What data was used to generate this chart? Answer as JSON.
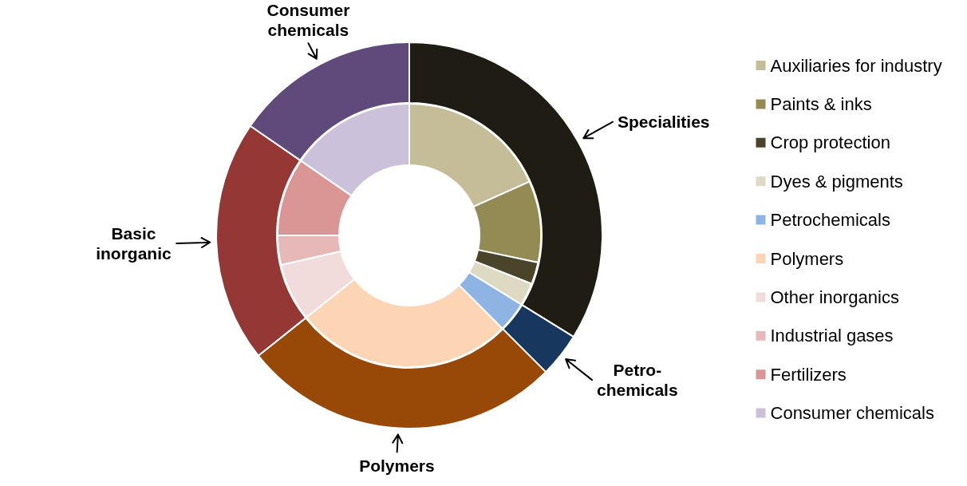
{
  "chart_data": [
    {
      "type": "donut",
      "legend": "right",
      "categories": [
        "Auxiliaries for industry",
        "Paints & inks",
        "Crop protection",
        "Dyes & pigments",
        "Petrochemicals",
        "Polymers",
        "Other inorganics",
        "Industrial gases",
        "Fertilizers",
        "Consumer chemicals"
      ],
      "values": [
        18.3,
        10.0,
        2.7,
        2.8,
        3.7,
        26.8,
        7.1,
        3.6,
        9.6,
        15.4
      ],
      "colors": [
        "#c4bd97",
        "#948a54",
        "#4a452a",
        "#ddd9c3",
        "#8eb4e3",
        "#fcd5b5",
        "#f2dcdb",
        "#e6b9b8",
        "#d99694",
        "#ccc1da"
      ]
    },
    {
      "type": "donut",
      "categories": [
        "Specialities",
        "Petro-chemicals",
        "Polymers",
        "Basic inorganic",
        "Consumer chemicals"
      ],
      "values": [
        33.8,
        3.7,
        26.8,
        20.3,
        15.4
      ],
      "colors": [
        "#1f1d13",
        "#17375e",
        "#984807",
        "#953735",
        "#604a7b"
      ]
    }
  ]
}
